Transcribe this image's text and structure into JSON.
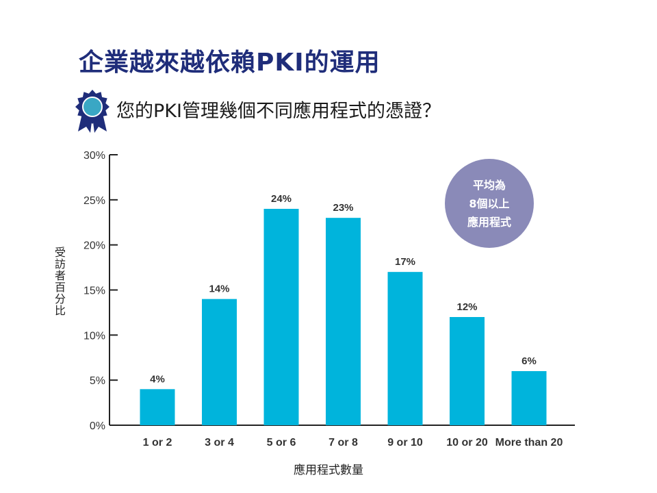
{
  "header": {
    "title": "企業越來越依賴PKI的運用",
    "subtitle": "您的PKI管理幾個不同應用程式的憑證？"
  },
  "callout": {
    "line1": "平均為",
    "line2": "8個以上",
    "line3": "應用程式",
    "color": "#8a8ab8"
  },
  "colors": {
    "bar": "#00b4dc",
    "title": "#1f2d7a"
  },
  "chart_data": {
    "type": "bar",
    "categories": [
      "1 or 2",
      "3 or 4",
      "5 or 6",
      "7 or 8",
      "9 or 10",
      "10 or 20",
      "More than 20"
    ],
    "values": [
      4,
      14,
      24,
      23,
      17,
      12,
      6
    ],
    "data_labels": [
      "4%",
      "14%",
      "24%",
      "23%",
      "17%",
      "12%",
      "6%"
    ],
    "ylabel": "受訪者百分比",
    "xlabel": "應用程式數量",
    "ylim": [
      0,
      30
    ],
    "yticks": [
      0,
      5,
      10,
      15,
      20,
      25,
      30
    ],
    "ytick_labels": [
      "0%",
      "5%",
      "10%",
      "15%",
      "20%",
      "25%",
      "30%"
    ],
    "grid": false,
    "legend": "none"
  }
}
